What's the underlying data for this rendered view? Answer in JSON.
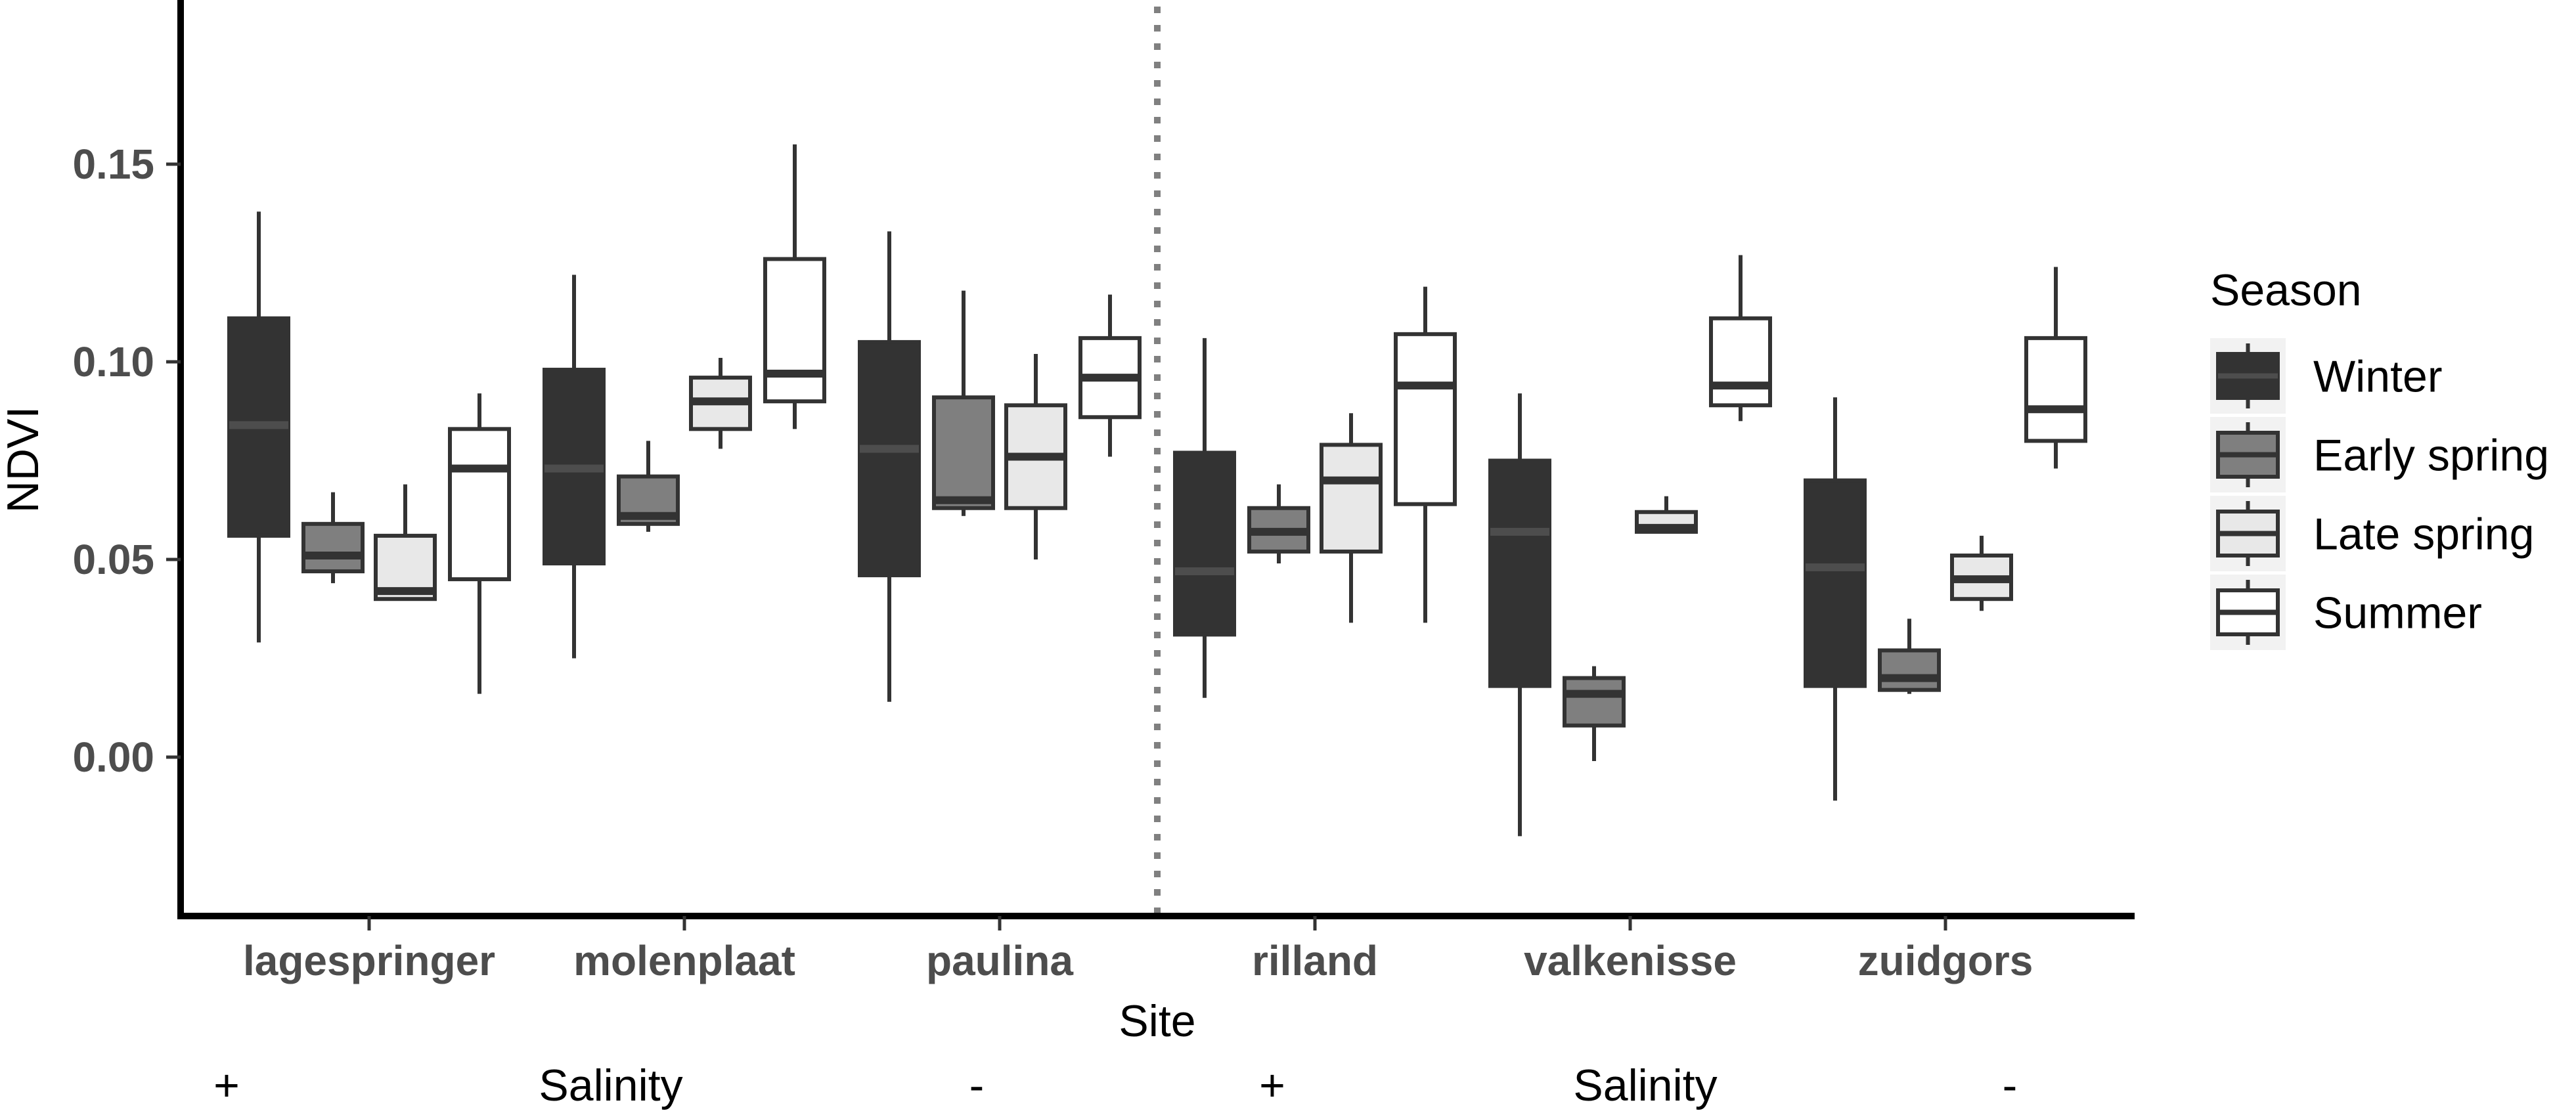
{
  "chart_data": {
    "type": "boxplot",
    "title": "",
    "xlabel": "Site",
    "ylabel": "NDVI",
    "ylim": [
      -0.04,
      0.19
    ],
    "yticks": [
      {
        "value": 0.0,
        "label": "0.00"
      },
      {
        "value": 0.05,
        "label": "0.05"
      },
      {
        "value": 0.1,
        "label": "0.10"
      },
      {
        "value": 0.15,
        "label": "0.15"
      }
    ],
    "categories": [
      "lagespringer",
      "molenplaat",
      "paulina",
      "rilland",
      "valkenisse",
      "zuidgors"
    ],
    "series": [
      {
        "name": "Winter",
        "fill": "#333333",
        "median_color": "#4d4d4d",
        "boxes": [
          {
            "min": 0.029,
            "q1": 0.056,
            "median": 0.084,
            "q3": 0.111,
            "max": 0.138
          },
          {
            "min": 0.025,
            "q1": 0.049,
            "median": 0.073,
            "q3": 0.098,
            "max": 0.122
          },
          {
            "min": 0.014,
            "q1": 0.046,
            "median": 0.078,
            "q3": 0.105,
            "max": 0.133
          },
          {
            "min": 0.015,
            "q1": 0.031,
            "median": 0.047,
            "q3": 0.077,
            "max": 0.106
          },
          {
            "min": -0.02,
            "q1": 0.018,
            "median": 0.057,
            "q3": 0.075,
            "max": 0.092
          },
          {
            "min": -0.011,
            "q1": 0.018,
            "median": 0.048,
            "q3": 0.07,
            "max": 0.091
          }
        ]
      },
      {
        "name": "Early spring",
        "fill": "#7f7f7f",
        "median_color": "#333333",
        "boxes": [
          {
            "min": 0.044,
            "q1": 0.047,
            "median": 0.051,
            "q3": 0.059,
            "max": 0.067
          },
          {
            "min": 0.057,
            "q1": 0.059,
            "median": 0.061,
            "q3": 0.071,
            "max": 0.08
          },
          {
            "min": 0.061,
            "q1": 0.063,
            "median": 0.065,
            "q3": 0.091,
            "max": 0.118
          },
          {
            "min": 0.049,
            "q1": 0.052,
            "median": 0.057,
            "q3": 0.063,
            "max": 0.069
          },
          {
            "min": -0.001,
            "q1": 0.008,
            "median": 0.016,
            "q3": 0.02,
            "max": 0.023
          },
          {
            "min": 0.016,
            "q1": 0.017,
            "median": 0.02,
            "q3": 0.027,
            "max": 0.035
          }
        ]
      },
      {
        "name": "Late spring",
        "fill": "#e8e8e8",
        "median_color": "#333333",
        "boxes": [
          {
            "min": 0.04,
            "q1": 0.04,
            "median": 0.042,
            "q3": 0.056,
            "max": 0.069
          },
          {
            "min": 0.078,
            "q1": 0.083,
            "median": 0.09,
            "q3": 0.096,
            "max": 0.101
          },
          {
            "min": 0.05,
            "q1": 0.063,
            "median": 0.076,
            "q3": 0.089,
            "max": 0.102
          },
          {
            "min": 0.034,
            "q1": 0.052,
            "median": 0.07,
            "q3": 0.079,
            "max": 0.087
          },
          {
            "min": 0.057,
            "q1": 0.057,
            "median": 0.058,
            "q3": 0.062,
            "max": 0.066
          },
          {
            "min": 0.037,
            "q1": 0.04,
            "median": 0.045,
            "q3": 0.051,
            "max": 0.056
          }
        ]
      },
      {
        "name": "Summer",
        "fill": "#ffffff",
        "median_color": "#333333",
        "boxes": [
          {
            "min": 0.016,
            "q1": 0.045,
            "median": 0.073,
            "q3": 0.083,
            "max": 0.092
          },
          {
            "min": 0.083,
            "q1": 0.09,
            "median": 0.097,
            "q3": 0.126,
            "max": 0.155
          },
          {
            "min": 0.076,
            "q1": 0.086,
            "median": 0.096,
            "q3": 0.106,
            "max": 0.117
          },
          {
            "min": 0.034,
            "q1": 0.064,
            "median": 0.094,
            "q3": 0.107,
            "max": 0.119
          },
          {
            "min": 0.085,
            "q1": 0.089,
            "median": 0.094,
            "q3": 0.111,
            "max": 0.127
          },
          {
            "min": 0.073,
            "q1": 0.08,
            "median": 0.088,
            "q3": 0.106,
            "max": 0.124
          }
        ]
      }
    ],
    "legend": {
      "title": "Season",
      "position": "right"
    },
    "divider": {
      "after_category": "paulina",
      "style": "dotted"
    },
    "annotations": {
      "salinity_rows": [
        {
          "group": "left",
          "plus": "+",
          "label": "Salinity",
          "minus": "-"
        },
        {
          "group": "right",
          "plus": "+",
          "label": "Salinity",
          "minus": "-"
        }
      ]
    }
  }
}
